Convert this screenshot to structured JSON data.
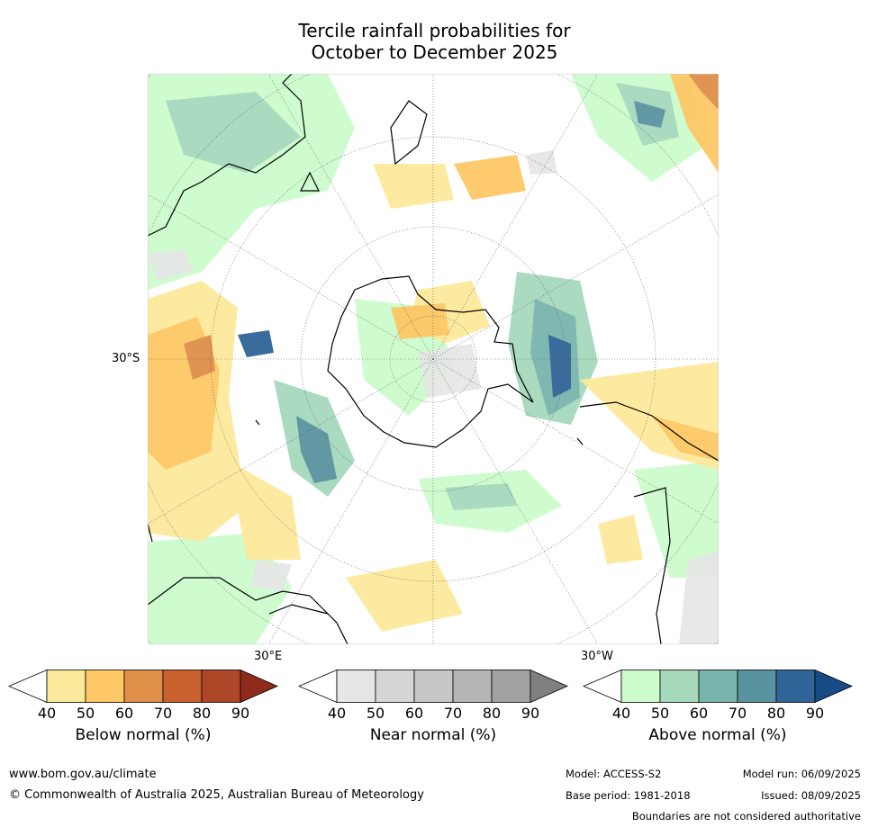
{
  "title": {
    "line1": "Tercile rainfall probabilities for",
    "line2": "October to December 2025"
  },
  "map": {
    "projection": "south-polar-stereographic",
    "graticule_labels": {
      "left": "30°S",
      "lower_left": "30°E",
      "lower_right": "30°W"
    },
    "land_outline_color": "#000000",
    "background": "#ffffff"
  },
  "colorbars": [
    {
      "id": "below",
      "title": "Below normal (%)",
      "ticks": [
        "40",
        "50",
        "60",
        "70",
        "80",
        "90"
      ],
      "colors": [
        "#ffffff",
        "#fde99c",
        "#fdc865",
        "#df8f48",
        "#c9612f",
        "#ad4728",
        "#8f2b1d"
      ]
    },
    {
      "id": "near",
      "title": "Near normal (%)",
      "ticks": [
        "40",
        "50",
        "60",
        "70",
        "80",
        "90"
      ],
      "colors": [
        "#ffffff",
        "#e6e6e6",
        "#d6d6d6",
        "#c7c7c7",
        "#b5b5b5",
        "#a1a1a1",
        "#808080"
      ]
    },
    {
      "id": "above",
      "title": "Above normal (%)",
      "ticks": [
        "40",
        "50",
        "60",
        "70",
        "80",
        "90"
      ],
      "colors": [
        "#ffffff",
        "#ccfccc",
        "#a6d9bc",
        "#7ab5ad",
        "#5a93a0",
        "#2f6596",
        "#174b86"
      ]
    }
  ],
  "footer": {
    "website": "www.bom.gov.au/climate",
    "copyright": "© Commonwealth of Australia 2025, Australian Bureau of Meteorology",
    "model": "Model: ACCESS-S2",
    "model_run": "Model run: 06/09/2025",
    "base_period": "Base period: 1981-2018",
    "issued": "Issued: 08/09/2025",
    "disclaimer": "Boundaries are not considered authoritative"
  }
}
